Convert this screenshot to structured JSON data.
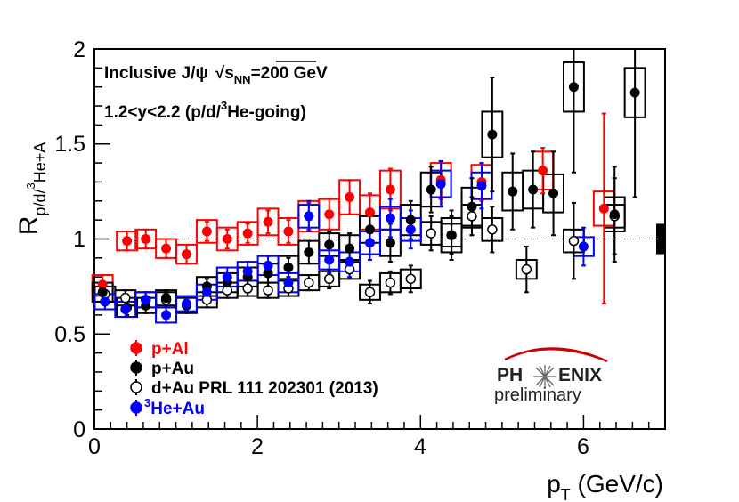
{
  "chart_data": {
    "type": "scatter",
    "title": "Inclusive J/ψ √sNN=200 GeV",
    "title_parts": {
      "prefix": "Inclusive J/",
      "psi": "ψ",
      "sqrt": "√",
      "s": "s",
      "sub": "NN",
      "suffix": "=200 GeV"
    },
    "subtitle": "1.2<y<2.2 (p/d/3He-going)",
    "subtitle_parts": {
      "main": "1.2<y<2.2 (p/d/",
      "sup": "3",
      "rest": "He-going)"
    },
    "xlabel": "pT (GeV/c)",
    "xlabel_parts": {
      "p": "p",
      "sub": "T",
      "rest": " (GeV/c)"
    },
    "ylabel": "Rp/d/3He+A",
    "ylabel_parts": {
      "R": "R",
      "sub1": "p/d/",
      "sup": "3",
      "sub2": "He+A"
    },
    "xlim": [
      0,
      7
    ],
    "ylim": [
      0,
      2
    ],
    "xticks": [
      "0",
      "2",
      "4",
      "6"
    ],
    "yticks": [
      "0",
      "0.5",
      "1",
      "1.5",
      "2"
    ],
    "reference_line": 1,
    "global_uncertainty": [
      0.92,
      1.08
    ],
    "series": [
      {
        "name": "p+Al",
        "color": "#ff0000",
        "marker": "filled",
        "points": [
          {
            "x": 0.1,
            "y": 0.76,
            "stat": 0.05,
            "sys": 0.05
          },
          {
            "x": 0.4,
            "y": 0.99,
            "stat": 0.05,
            "sys": 0.05
          },
          {
            "x": 0.63,
            "y": 1.0,
            "stat": 0.05,
            "sys": 0.05
          },
          {
            "x": 0.88,
            "y": 0.95,
            "stat": 0.05,
            "sys": 0.05
          },
          {
            "x": 1.13,
            "y": 0.92,
            "stat": 0.05,
            "sys": 0.05
          },
          {
            "x": 1.38,
            "y": 1.04,
            "stat": 0.05,
            "sys": 0.06
          },
          {
            "x": 1.63,
            "y": 1.0,
            "stat": 0.05,
            "sys": 0.06
          },
          {
            "x": 1.88,
            "y": 1.03,
            "stat": 0.05,
            "sys": 0.06
          },
          {
            "x": 2.13,
            "y": 1.09,
            "stat": 0.06,
            "sys": 0.07
          },
          {
            "x": 2.38,
            "y": 1.04,
            "stat": 0.06,
            "sys": 0.07
          },
          {
            "x": 2.63,
            "y": 1.12,
            "stat": 0.07,
            "sys": 0.08
          },
          {
            "x": 2.88,
            "y": 1.13,
            "stat": 0.08,
            "sys": 0.08
          },
          {
            "x": 3.13,
            "y": 1.22,
            "stat": 0.09,
            "sys": 0.09
          },
          {
            "x": 3.38,
            "y": 1.14,
            "stat": 0.1,
            "sys": 0.09
          },
          {
            "x": 3.63,
            "y": 1.26,
            "stat": 0.11,
            "sys": 0.1
          },
          {
            "x": 4.25,
            "y": 1.31,
            "stat": 0.1,
            "sys": 0.09
          },
          {
            "x": 4.75,
            "y": 1.3,
            "stat": 0.1,
            "sys": 0.09
          },
          {
            "x": 5.5,
            "y": 1.36,
            "stat": 0.12,
            "sys": 0.1
          },
          {
            "x": 6.25,
            "y": 1.16,
            "stat": 0.5,
            "sys": 0.09
          }
        ]
      },
      {
        "name": "p+Au",
        "color": "#000000",
        "marker": "filled",
        "points": [
          {
            "x": 0.1,
            "y": 0.72,
            "stat": 0.04,
            "sys": 0.05
          },
          {
            "x": 0.4,
            "y": 0.64,
            "stat": 0.04,
            "sys": 0.05
          },
          {
            "x": 0.63,
            "y": 0.65,
            "stat": 0.04,
            "sys": 0.04
          },
          {
            "x": 0.88,
            "y": 0.69,
            "stat": 0.04,
            "sys": 0.04
          },
          {
            "x": 1.13,
            "y": 0.65,
            "stat": 0.04,
            "sys": 0.04
          },
          {
            "x": 1.38,
            "y": 0.75,
            "stat": 0.04,
            "sys": 0.05
          },
          {
            "x": 1.63,
            "y": 0.77,
            "stat": 0.05,
            "sys": 0.05
          },
          {
            "x": 1.88,
            "y": 0.8,
            "stat": 0.05,
            "sys": 0.05
          },
          {
            "x": 2.13,
            "y": 0.82,
            "stat": 0.05,
            "sys": 0.05
          },
          {
            "x": 2.38,
            "y": 0.85,
            "stat": 0.05,
            "sys": 0.06
          },
          {
            "x": 2.63,
            "y": 0.93,
            "stat": 0.06,
            "sys": 0.06
          },
          {
            "x": 2.88,
            "y": 0.97,
            "stat": 0.07,
            "sys": 0.06
          },
          {
            "x": 3.13,
            "y": 0.95,
            "stat": 0.08,
            "sys": 0.07
          },
          {
            "x": 3.38,
            "y": 1.05,
            "stat": 0.09,
            "sys": 0.07
          },
          {
            "x": 3.63,
            "y": 0.98,
            "stat": 0.1,
            "sys": 0.07
          },
          {
            "x": 3.88,
            "y": 1.1,
            "stat": 0.1,
            "sys": 0.08
          },
          {
            "x": 4.13,
            "y": 1.26,
            "stat": 0.12,
            "sys": 0.09
          },
          {
            "x": 4.38,
            "y": 1.02,
            "stat": 0.13,
            "sys": 0.09
          },
          {
            "x": 4.63,
            "y": 1.17,
            "stat": 0.15,
            "sys": 0.1
          },
          {
            "x": 4.88,
            "y": 1.55,
            "stat": 0.3,
            "sys": 0.12
          },
          {
            "x": 5.13,
            "y": 1.25,
            "stat": 0.2,
            "sys": 0.1
          },
          {
            "x": 5.38,
            "y": 1.26,
            "stat": 0.2,
            "sys": 0.1
          },
          {
            "x": 5.63,
            "y": 1.24,
            "stat": 0.22,
            "sys": 0.1
          },
          {
            "x": 5.88,
            "y": 1.8,
            "stat": 0.45,
            "sys": 0.13
          },
          {
            "x": 6.38,
            "y": 1.13,
            "stat": 0.25,
            "sys": 0.09
          },
          {
            "x": 6.63,
            "y": 1.77,
            "stat": 0.55,
            "sys": 0.13
          }
        ]
      },
      {
        "name": "d+Au PRL 111 202301 (2013)",
        "color": "#000000",
        "marker": "open",
        "points": [
          {
            "x": 0.13,
            "y": 0.71,
            "stat": 0.04,
            "sys": 0.04
          },
          {
            "x": 0.38,
            "y": 0.69,
            "stat": 0.04,
            "sys": 0.04
          },
          {
            "x": 0.63,
            "y": 0.68,
            "stat": 0.04,
            "sys": 0.04
          },
          {
            "x": 0.88,
            "y": 0.68,
            "stat": 0.04,
            "sys": 0.04
          },
          {
            "x": 1.38,
            "y": 0.68,
            "stat": 0.04,
            "sys": 0.04
          },
          {
            "x": 1.63,
            "y": 0.73,
            "stat": 0.04,
            "sys": 0.04
          },
          {
            "x": 1.88,
            "y": 0.74,
            "stat": 0.04,
            "sys": 0.04
          },
          {
            "x": 2.13,
            "y": 0.73,
            "stat": 0.04,
            "sys": 0.04
          },
          {
            "x": 2.38,
            "y": 0.74,
            "stat": 0.04,
            "sys": 0.04
          },
          {
            "x": 2.63,
            "y": 0.77,
            "stat": 0.04,
            "sys": 0.04
          },
          {
            "x": 2.88,
            "y": 0.79,
            "stat": 0.05,
            "sys": 0.04
          },
          {
            "x": 3.13,
            "y": 0.84,
            "stat": 0.05,
            "sys": 0.05
          },
          {
            "x": 3.38,
            "y": 0.72,
            "stat": 0.06,
            "sys": 0.04
          },
          {
            "x": 3.63,
            "y": 0.77,
            "stat": 0.06,
            "sys": 0.05
          },
          {
            "x": 3.88,
            "y": 0.79,
            "stat": 0.07,
            "sys": 0.05
          },
          {
            "x": 4.13,
            "y": 1.03,
            "stat": 0.09,
            "sys": 0.06
          },
          {
            "x": 4.38,
            "y": 1.02,
            "stat": 0.1,
            "sys": 0.06
          },
          {
            "x": 4.63,
            "y": 1.12,
            "stat": 0.1,
            "sys": 0.06
          },
          {
            "x": 4.88,
            "y": 1.05,
            "stat": 0.12,
            "sys": 0.06
          },
          {
            "x": 5.3,
            "y": 0.84,
            "stat": 0.12,
            "sys": 0.05
          },
          {
            "x": 5.88,
            "y": 0.99,
            "stat": 0.2,
            "sys": 0.06
          },
          {
            "x": 6.38,
            "y": 1.12,
            "stat": 0.2,
            "sys": 0.06
          }
        ]
      },
      {
        "name": "3He+Au",
        "color": "#0000ff",
        "marker": "filled",
        "points": [
          {
            "x": 0.13,
            "y": 0.67,
            "stat": 0.04,
            "sys": 0.04
          },
          {
            "x": 0.38,
            "y": 0.63,
            "stat": 0.04,
            "sys": 0.04
          },
          {
            "x": 0.63,
            "y": 0.68,
            "stat": 0.04,
            "sys": 0.04
          },
          {
            "x": 0.88,
            "y": 0.6,
            "stat": 0.04,
            "sys": 0.04
          },
          {
            "x": 1.13,
            "y": 0.66,
            "stat": 0.04,
            "sys": 0.04
          },
          {
            "x": 1.38,
            "y": 0.72,
            "stat": 0.04,
            "sys": 0.04
          },
          {
            "x": 1.63,
            "y": 0.8,
            "stat": 0.05,
            "sys": 0.05
          },
          {
            "x": 1.88,
            "y": 0.83,
            "stat": 0.05,
            "sys": 0.05
          },
          {
            "x": 2.13,
            "y": 0.86,
            "stat": 0.05,
            "sys": 0.05
          },
          {
            "x": 2.38,
            "y": 0.77,
            "stat": 0.05,
            "sys": 0.05
          },
          {
            "x": 2.63,
            "y": 1.12,
            "stat": 0.08,
            "sys": 0.06
          },
          {
            "x": 2.88,
            "y": 0.89,
            "stat": 0.07,
            "sys": 0.05
          },
          {
            "x": 3.13,
            "y": 0.88,
            "stat": 0.08,
            "sys": 0.05
          },
          {
            "x": 3.38,
            "y": 0.98,
            "stat": 0.09,
            "sys": 0.06
          },
          {
            "x": 3.63,
            "y": 1.11,
            "stat": 0.1,
            "sys": 0.06
          },
          {
            "x": 3.88,
            "y": 1.05,
            "stat": 0.1,
            "sys": 0.06
          },
          {
            "x": 4.25,
            "y": 1.29,
            "stat": 0.12,
            "sys": 0.07
          },
          {
            "x": 4.75,
            "y": 1.28,
            "stat": 0.12,
            "sys": 0.07
          },
          {
            "x": 6.0,
            "y": 0.96,
            "stat": 0.1,
            "sys": 0.05
          }
        ]
      }
    ],
    "legend": [
      {
        "label": "p+Al",
        "color": "#ff0000",
        "marker": "filled"
      },
      {
        "label": "p+Au",
        "color": "#000000",
        "marker": "filled"
      },
      {
        "label": "d+Au PRL 111 202301 (2013)",
        "color": "#000000",
        "marker": "open"
      },
      {
        "label": "He+Au",
        "sup": "3",
        "color": "#0000ff",
        "marker": "filled"
      }
    ]
  },
  "logo": {
    "main_left": "PH",
    "main_right": "ENIX",
    "sub": "preliminary",
    "arc_color": "#cc0000"
  }
}
